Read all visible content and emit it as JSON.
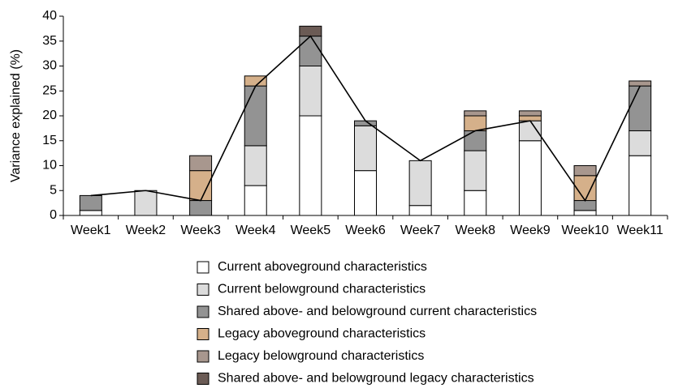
{
  "chart_data": {
    "type": "stacked_bar_line",
    "y_label": "Variance explained (%)",
    "categories": [
      "Week1",
      "Week2",
      "Week3",
      "Week4",
      "Week5",
      "Week6",
      "Week7",
      "Week8",
      "Week9",
      "Week10",
      "Week11"
    ],
    "series": [
      {
        "name": "Current aboveground characteristics",
        "color": "#ffffff",
        "values": [
          1,
          0,
          0,
          6,
          20,
          9,
          2,
          5,
          15,
          1,
          12
        ]
      },
      {
        "name": "Current belowground characteristics",
        "color": "#dcdcdc",
        "values": [
          0,
          5,
          0,
          8,
          10,
          9,
          9,
          8,
          4,
          0,
          5
        ]
      },
      {
        "name": "Shared above- and belowground current characteristics",
        "color": "#939393",
        "values": [
          3,
          0,
          3,
          12,
          6,
          1,
          0,
          4,
          0,
          2,
          9
        ]
      },
      {
        "name": "Legacy aboveground characteristics",
        "color": "#d5b08a",
        "values": [
          0,
          0,
          6,
          2,
          0,
          0,
          0,
          3,
          1,
          5,
          0
        ]
      },
      {
        "name": "Legacy belowground characteristics",
        "color": "#a8978e",
        "values": [
          0,
          0,
          3,
          0,
          0,
          0,
          0,
          1,
          1,
          2,
          1
        ]
      },
      {
        "name": "Shared above- and belowground legacy characteristics",
        "color": "#6b5b55",
        "values": [
          0,
          0,
          0,
          0,
          2,
          0,
          0,
          0,
          0,
          0,
          0
        ]
      }
    ],
    "line": {
      "color": "#000000",
      "values": [
        4,
        5,
        3,
        26,
        36,
        19,
        11,
        17,
        19,
        3,
        26
      ]
    },
    "ylim": [
      0,
      40
    ],
    "yticks": [
      0,
      5,
      10,
      15,
      20,
      25,
      30,
      35,
      40
    ]
  }
}
